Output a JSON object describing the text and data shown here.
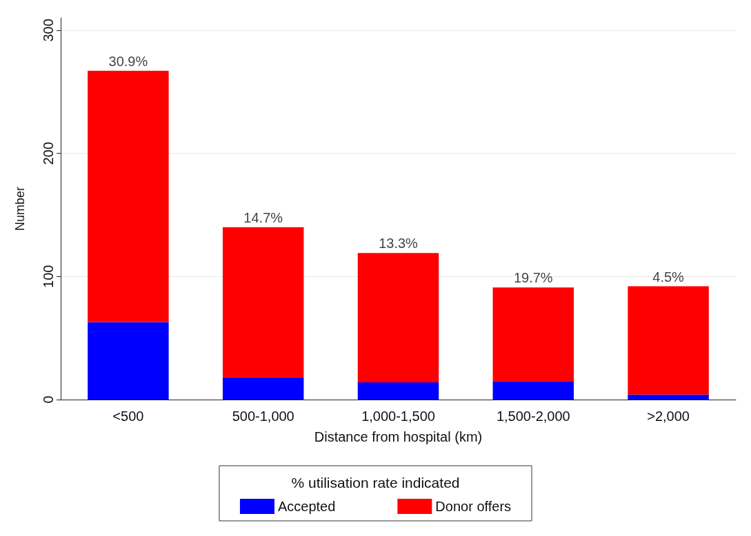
{
  "chart_data": {
    "type": "bar",
    "stacked": true,
    "xlabel": "Distance from hospital (km)",
    "ylabel": "Number",
    "legend_title": "% utilisation rate indicated",
    "categories": [
      "<500",
      "500-1,000",
      "1,000-1,500",
      "1,500-2,000",
      ">2,000"
    ],
    "series": [
      {
        "name": "Accepted",
        "color": "#0000ff",
        "values": [
          63,
          18,
          14,
          15,
          4
        ]
      },
      {
        "name": "Donor offers",
        "color": "#ff0000",
        "values": [
          204,
          122,
          105,
          76,
          88
        ]
      }
    ],
    "annotations": [
      {
        "text": "30.9%",
        "x": "<500",
        "y": 267
      },
      {
        "text": "14.7%",
        "x": "500-1,000",
        "y": 140
      },
      {
        "text": "13.3%",
        "x": "1,000-1,500",
        "y": 119
      },
      {
        "text": "19.7%",
        "x": "1,500-2,000",
        "y": 91
      },
      {
        "text": "4.5%",
        "x": ">2,000",
        "y": 92
      }
    ],
    "ylim": [
      0,
      310
    ],
    "yticks": [
      0,
      100,
      200,
      300
    ],
    "grid": "y",
    "legend": "bottom"
  }
}
